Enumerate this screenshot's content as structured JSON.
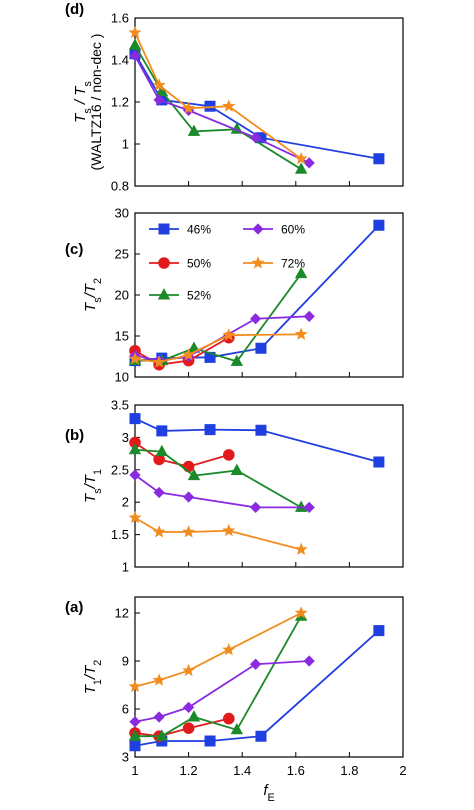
{
  "figure": {
    "xlabel_main": "f",
    "xlabel_sub": "E"
  },
  "series_styles": {
    "46%": {
      "color": "#1f3fe0",
      "marker": "square"
    },
    "50%": {
      "color": "#e31a1c",
      "marker": "circle"
    },
    "52%": {
      "color": "#1b8a2a",
      "marker": "triangle"
    },
    "60%": {
      "color": "#8a2be2",
      "marker": "diamond"
    },
    "72%": {
      "color": "#f28c1e",
      "marker": "star"
    }
  },
  "chart_data": [
    {
      "type": "line",
      "panel_label": "(d)",
      "ylabel_line1": "T_s / T_s",
      "ylabel_line2": "(WALTZ16 / non-dec )",
      "ylim": [
        0.8,
        1.6
      ],
      "yticks": [
        "0.8",
        "1",
        "1.2",
        "1.4",
        "1.6"
      ],
      "xlim": [
        1,
        2
      ],
      "legend": false,
      "series": [
        {
          "name": "46%",
          "x": [
            1.0,
            1.1,
            1.28,
            1.47,
            1.91
          ],
          "y": [
            1.43,
            1.21,
            1.18,
            1.03,
            0.93
          ]
        },
        {
          "name": "52%",
          "x": [
            1.0,
            1.1,
            1.22,
            1.38,
            1.62
          ],
          "y": [
            1.47,
            1.25,
            1.06,
            1.07,
            0.88
          ]
        },
        {
          "name": "60%",
          "x": [
            1.0,
            1.09,
            1.2,
            1.45,
            1.65
          ],
          "y": [
            1.42,
            1.21,
            1.16,
            1.03,
            0.91
          ]
        },
        {
          "name": "72%",
          "x": [
            1.0,
            1.09,
            1.2,
            1.35,
            1.62
          ],
          "y": [
            1.53,
            1.28,
            1.17,
            1.18,
            0.93
          ]
        }
      ]
    },
    {
      "type": "line",
      "panel_label": "(c)",
      "ylabel_line1": "T_s/T_2",
      "ylim": [
        10,
        30
      ],
      "yticks": [
        "10",
        "15",
        "20",
        "25",
        "30"
      ],
      "xlim": [
        1,
        2
      ],
      "legend": true,
      "legend_entries": [
        "46%",
        "60%",
        "50%",
        "72%",
        "52%"
      ],
      "series": [
        {
          "name": "46%",
          "x": [
            1.0,
            1.1,
            1.28,
            1.47,
            1.91
          ],
          "y": [
            12.0,
            12.3,
            12.4,
            13.5,
            28.5
          ]
        },
        {
          "name": "50%",
          "x": [
            1.0,
            1.09,
            1.2,
            1.35
          ],
          "y": [
            13.2,
            11.5,
            12.0,
            14.8
          ]
        },
        {
          "name": "52%",
          "x": [
            1.0,
            1.1,
            1.22,
            1.38,
            1.62
          ],
          "y": [
            12.0,
            12.0,
            13.5,
            11.9,
            22.6
          ]
        },
        {
          "name": "60%",
          "x": [
            1.0,
            1.09,
            1.2,
            1.45,
            1.65
          ],
          "y": [
            12.6,
            12.0,
            12.5,
            17.1,
            17.4
          ]
        },
        {
          "name": "72%",
          "x": [
            1.0,
            1.09,
            1.2,
            1.35,
            1.62
          ],
          "y": [
            12.2,
            11.8,
            12.7,
            15.1,
            15.2
          ]
        }
      ]
    },
    {
      "type": "line",
      "panel_label": "(b)",
      "ylabel_line1": "T_s/T_1",
      "ylim": [
        1,
        3.5
      ],
      "yticks": [
        "1",
        "1.5",
        "2",
        "2.5",
        "3",
        "3.5"
      ],
      "xlim": [
        1,
        2
      ],
      "legend": false,
      "series": [
        {
          "name": "46%",
          "x": [
            1.0,
            1.1,
            1.28,
            1.47,
            1.91
          ],
          "y": [
            3.29,
            3.1,
            3.12,
            3.11,
            2.62
          ]
        },
        {
          "name": "50%",
          "x": [
            1.0,
            1.09,
            1.2,
            1.35
          ],
          "y": [
            2.92,
            2.66,
            2.55,
            2.73
          ]
        },
        {
          "name": "52%",
          "x": [
            1.0,
            1.1,
            1.22,
            1.38,
            1.62
          ],
          "y": [
            2.81,
            2.78,
            2.41,
            2.49,
            1.92
          ]
        },
        {
          "name": "60%",
          "x": [
            1.0,
            1.09,
            1.2,
            1.45,
            1.65
          ],
          "y": [
            2.42,
            2.15,
            2.08,
            1.92,
            1.92
          ]
        },
        {
          "name": "72%",
          "x": [
            1.0,
            1.09,
            1.2,
            1.35,
            1.62
          ],
          "y": [
            1.76,
            1.54,
            1.54,
            1.56,
            1.27
          ]
        }
      ]
    },
    {
      "type": "line",
      "panel_label": "(a)",
      "ylabel_line1": "T_1/T_2",
      "ylim": [
        3,
        13
      ],
      "yticks": [
        "3",
        "6",
        "9",
        "12"
      ],
      "ytick_values": [
        3,
        6,
        9,
        12
      ],
      "xlim": [
        1,
        2
      ],
      "xticks": [
        "1",
        "1.2",
        "1.4",
        "1.6",
        "1.8",
        "2"
      ],
      "legend": false,
      "series": [
        {
          "name": "46%",
          "x": [
            1.0,
            1.1,
            1.28,
            1.47,
            1.91
          ],
          "y": [
            3.7,
            4.0,
            4.0,
            4.3,
            10.9
          ]
        },
        {
          "name": "50%",
          "x": [
            1.0,
            1.09,
            1.2,
            1.35
          ],
          "y": [
            4.5,
            4.3,
            4.8,
            5.4
          ]
        },
        {
          "name": "52%",
          "x": [
            1.0,
            1.1,
            1.22,
            1.38,
            1.62
          ],
          "y": [
            4.3,
            4.3,
            5.5,
            4.7,
            11.8
          ]
        },
        {
          "name": "60%",
          "x": [
            1.0,
            1.09,
            1.2,
            1.45,
            1.65
          ],
          "y": [
            5.2,
            5.5,
            6.1,
            8.8,
            9.0
          ]
        },
        {
          "name": "72%",
          "x": [
            1.0,
            1.09,
            1.2,
            1.35,
            1.62
          ],
          "y": [
            7.4,
            7.8,
            8.4,
            9.7,
            12.0
          ]
        }
      ]
    }
  ]
}
